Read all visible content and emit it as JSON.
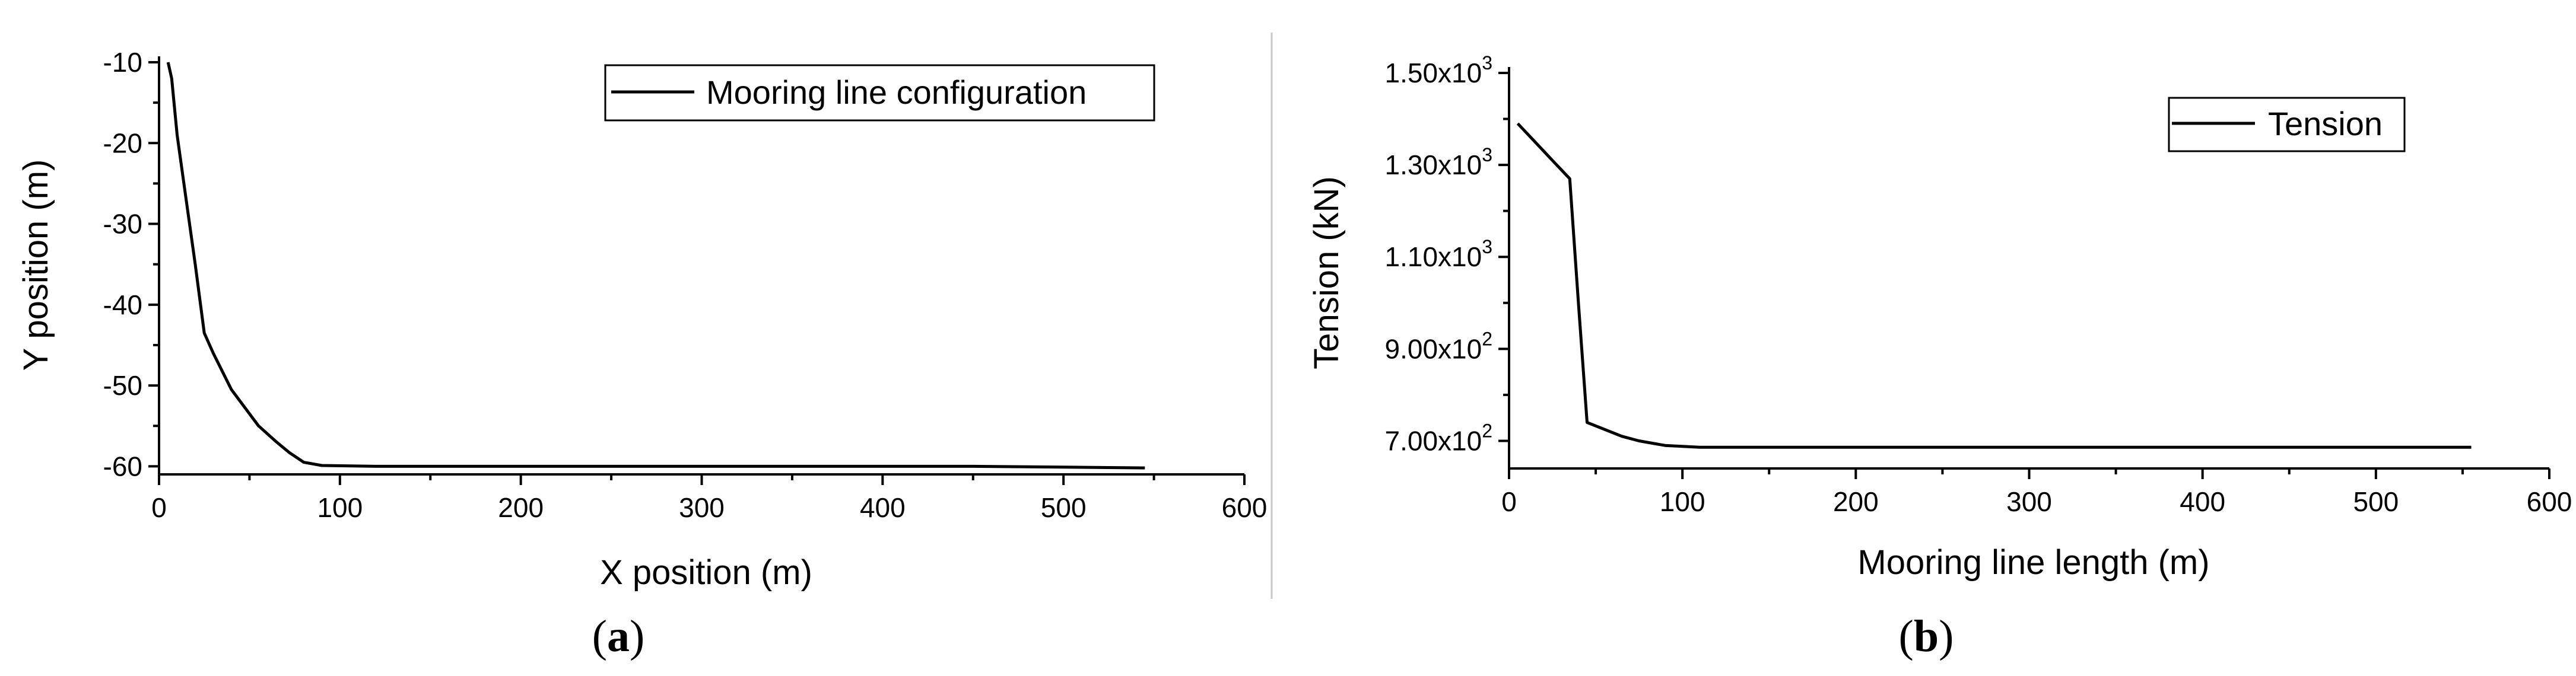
{
  "chart_data": [
    {
      "type": "line",
      "panel_label": "a",
      "xlabel": "X position (m)",
      "ylabel": "Y position (m)",
      "xlim": [
        0,
        600
      ],
      "ylim": [
        -61,
        -10
      ],
      "xticks": [
        0,
        100,
        200,
        300,
        400,
        500,
        600
      ],
      "yticks": [
        -60,
        -50,
        -40,
        -30,
        -20,
        -10
      ],
      "xtick_labels": [
        "0",
        "100",
        "200",
        "300",
        "400",
        "500",
        "600"
      ],
      "ytick_labels": [
        "-60",
        "-50",
        "-40",
        "-30",
        "-20",
        "-10"
      ],
      "grid": false,
      "legend_position": "top-right",
      "series": [
        {
          "name": "Mooring line configuration",
          "color": "#000000",
          "x": [
            5,
            7,
            10,
            15,
            20,
            25,
            30,
            40,
            55,
            65,
            72,
            80,
            90,
            120,
            200,
            300,
            400,
            450,
            500,
            545
          ],
          "y": [
            -10,
            -12,
            -19,
            -27,
            -35,
            -43.5,
            -46,
            -50.5,
            -55,
            -57,
            -58.3,
            -59.5,
            -59.9,
            -60,
            -60,
            -60,
            -60,
            -60,
            -60.1,
            -60.2
          ]
        }
      ]
    },
    {
      "type": "line",
      "panel_label": "b",
      "xlabel": "Mooring line length (m)",
      "ylabel": "Tension (kN)",
      "xlim": [
        0,
        600
      ],
      "ylim": [
        640,
        1500
      ],
      "xticks": [
        0,
        100,
        200,
        300,
        400,
        500,
        600
      ],
      "yticks": [
        700,
        900,
        1100,
        1300,
        1500
      ],
      "xtick_labels": [
        "0",
        "100",
        "200",
        "300",
        "400",
        "500",
        "600"
      ],
      "ytick_labels": [
        {
          "mantissa": "7.00x10",
          "exp": "2"
        },
        {
          "mantissa": "9.00x10",
          "exp": "2"
        },
        {
          "mantissa": "1.10x10",
          "exp": "3"
        },
        {
          "mantissa": "1.30x10",
          "exp": "3"
        },
        {
          "mantissa": "1.50x10",
          "exp": "3"
        }
      ],
      "grid": false,
      "legend_position": "top-right",
      "series": [
        {
          "name": "Tension",
          "color": "#000000",
          "x": [
            5,
            15,
            25,
            35,
            40,
            45,
            55,
            65,
            75,
            90,
            110,
            200,
            300,
            400,
            500,
            555
          ],
          "y": [
            1390,
            1350,
            1310,
            1270,
            1000,
            740,
            725,
            710,
            700,
            690,
            686,
            686,
            686,
            686,
            686,
            686
          ]
        }
      ]
    }
  ]
}
